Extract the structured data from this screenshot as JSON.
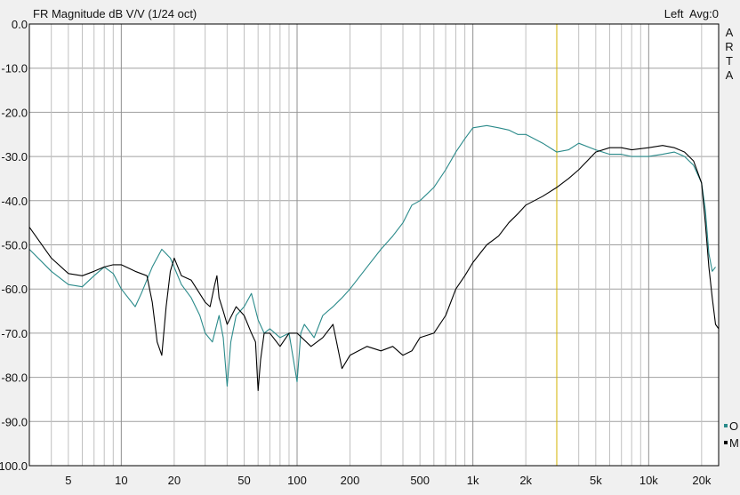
{
  "chart_data": {
    "type": "line",
    "title": "FR Magnitude dB V/V (1/24 oct)",
    "status_right": "Left  Avg:0",
    "watermark": [
      "A",
      "R",
      "T",
      "A"
    ],
    "x_scale": "log",
    "xlim": [
      3,
      25000
    ],
    "ylim": [
      -100,
      0
    ],
    "y_ticks": [
      0,
      -10,
      -20,
      -30,
      -40,
      -50,
      -60,
      -70,
      -80,
      -90,
      -100
    ],
    "y_tick_labels": [
      "0.0",
      "-10.0",
      "-20.0",
      "-30.0",
      "-40.0",
      "-50.0",
      "-60.0",
      "-70.0",
      "-80.0",
      "-90.0",
      "-100.0"
    ],
    "x_ticks": [
      5,
      10,
      20,
      50,
      100,
      200,
      500,
      1000,
      2000,
      5000,
      10000,
      20000
    ],
    "x_tick_labels": [
      "5",
      "10",
      "20",
      "50",
      "100",
      "200",
      "500",
      "1k",
      "2k",
      "5k",
      "10k",
      "20k"
    ],
    "grid": true,
    "marker_line_hz": 3000,
    "marker_color": "#d4b400",
    "legend": {
      "placement": "bottom-right",
      "entries": [
        "O",
        "M"
      ]
    },
    "series": [
      {
        "legend_marker": "O",
        "color": "#2a8a8a",
        "points": [
          [
            3,
            -51
          ],
          [
            4,
            -56
          ],
          [
            5,
            -59
          ],
          [
            6,
            -59.5
          ],
          [
            7,
            -57
          ],
          [
            8,
            -55
          ],
          [
            9,
            -56.5
          ],
          [
            10,
            -60
          ],
          [
            12,
            -64
          ],
          [
            13,
            -61
          ],
          [
            15,
            -55
          ],
          [
            17,
            -51
          ],
          [
            19,
            -53
          ],
          [
            22,
            -59
          ],
          [
            25,
            -62
          ],
          [
            28,
            -66
          ],
          [
            30,
            -70
          ],
          [
            33,
            -72
          ],
          [
            36,
            -66
          ],
          [
            38,
            -71
          ],
          [
            40,
            -82
          ],
          [
            42,
            -72
          ],
          [
            45,
            -66
          ],
          [
            50,
            -64
          ],
          [
            55,
            -61
          ],
          [
            60,
            -67
          ],
          [
            65,
            -70
          ],
          [
            70,
            -69
          ],
          [
            80,
            -71
          ],
          [
            90,
            -70
          ],
          [
            100,
            -81
          ],
          [
            105,
            -70
          ],
          [
            110,
            -68
          ],
          [
            125,
            -71
          ],
          [
            140,
            -66
          ],
          [
            160,
            -64
          ],
          [
            180,
            -62
          ],
          [
            200,
            -60
          ],
          [
            250,
            -55
          ],
          [
            300,
            -51
          ],
          [
            350,
            -48
          ],
          [
            400,
            -45
          ],
          [
            450,
            -41
          ],
          [
            500,
            -40
          ],
          [
            600,
            -37
          ],
          [
            700,
            -33
          ],
          [
            800,
            -29
          ],
          [
            900,
            -26
          ],
          [
            1000,
            -23.5
          ],
          [
            1200,
            -23
          ],
          [
            1400,
            -23.5
          ],
          [
            1600,
            -24
          ],
          [
            1800,
            -25
          ],
          [
            2000,
            -25
          ],
          [
            2500,
            -27
          ],
          [
            3000,
            -29
          ],
          [
            3500,
            -28.5
          ],
          [
            4000,
            -27
          ],
          [
            5000,
            -28.5
          ],
          [
            6000,
            -29.5
          ],
          [
            7000,
            -29.5
          ],
          [
            8000,
            -30
          ],
          [
            10000,
            -30
          ],
          [
            12000,
            -29.5
          ],
          [
            14000,
            -29
          ],
          [
            16000,
            -30
          ],
          [
            18000,
            -32
          ],
          [
            20000,
            -36
          ],
          [
            21000,
            -42
          ],
          [
            22000,
            -52
          ],
          [
            23000,
            -56
          ],
          [
            24000,
            -55
          ]
        ]
      },
      {
        "legend_marker": "M",
        "color": "#000000",
        "points": [
          [
            3,
            -46
          ],
          [
            4,
            -53
          ],
          [
            5,
            -56.5
          ],
          [
            6,
            -57
          ],
          [
            7,
            -56
          ],
          [
            8,
            -55
          ],
          [
            9,
            -54.5
          ],
          [
            10,
            -54.5
          ],
          [
            12,
            -56
          ],
          [
            14,
            -57
          ],
          [
            15,
            -63
          ],
          [
            16,
            -72
          ],
          [
            17,
            -75
          ],
          [
            18,
            -64
          ],
          [
            19,
            -56
          ],
          [
            20,
            -53
          ],
          [
            22,
            -57
          ],
          [
            25,
            -58
          ],
          [
            30,
            -63
          ],
          [
            32,
            -64
          ],
          [
            34,
            -59
          ],
          [
            35,
            -57
          ],
          [
            36,
            -62
          ],
          [
            38,
            -65
          ],
          [
            40,
            -68
          ],
          [
            45,
            -64
          ],
          [
            50,
            -66
          ],
          [
            55,
            -70
          ],
          [
            58,
            -72
          ],
          [
            60,
            -83
          ],
          [
            62,
            -76
          ],
          [
            65,
            -70
          ],
          [
            70,
            -70
          ],
          [
            80,
            -73
          ],
          [
            90,
            -70
          ],
          [
            100,
            -70
          ],
          [
            120,
            -73
          ],
          [
            140,
            -71
          ],
          [
            160,
            -68
          ],
          [
            180,
            -78
          ],
          [
            200,
            -75
          ],
          [
            250,
            -73
          ],
          [
            300,
            -74
          ],
          [
            350,
            -73
          ],
          [
            400,
            -75
          ],
          [
            450,
            -74
          ],
          [
            500,
            -71
          ],
          [
            600,
            -70
          ],
          [
            700,
            -66
          ],
          [
            800,
            -60
          ],
          [
            900,
            -57
          ],
          [
            1000,
            -54
          ],
          [
            1200,
            -50
          ],
          [
            1400,
            -48
          ],
          [
            1600,
            -45
          ],
          [
            1800,
            -43
          ],
          [
            2000,
            -41
          ],
          [
            2500,
            -39
          ],
          [
            3000,
            -37
          ],
          [
            3500,
            -35
          ],
          [
            4000,
            -33
          ],
          [
            5000,
            -29
          ],
          [
            6000,
            -28
          ],
          [
            7000,
            -28
          ],
          [
            8000,
            -28.5
          ],
          [
            10000,
            -28
          ],
          [
            12000,
            -27.5
          ],
          [
            14000,
            -28
          ],
          [
            16000,
            -29
          ],
          [
            18000,
            -31
          ],
          [
            20000,
            -36
          ],
          [
            21000,
            -45
          ],
          [
            22000,
            -55
          ],
          [
            23000,
            -62
          ],
          [
            24000,
            -68
          ],
          [
            25000,
            -69
          ]
        ]
      }
    ]
  }
}
